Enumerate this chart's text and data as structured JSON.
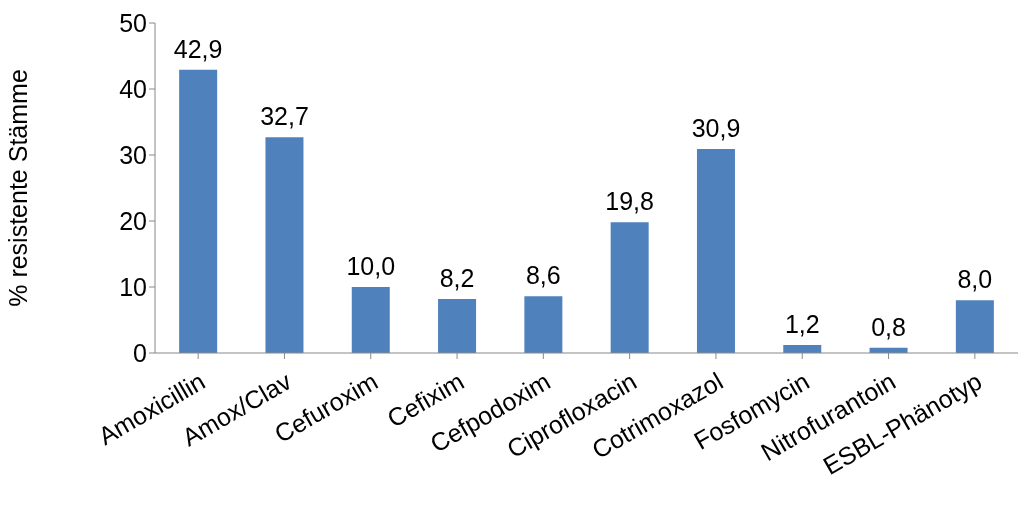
{
  "chart_data": {
    "type": "bar",
    "ylabel": "% resistente Stämme",
    "categories": [
      "Amoxicillin",
      "Amox/Clav",
      "Cefuroxim",
      "Cefixim",
      "Cefpodoxim",
      "Ciprofloxacin",
      "Cotrimoxazol",
      "Fosfomycin",
      "Nitrofurantoin",
      "ESBL-Phänotyp"
    ],
    "values": [
      42.9,
      32.7,
      10.0,
      8.2,
      8.6,
      19.8,
      30.9,
      1.2,
      0.8,
      8.0
    ],
    "value_labels": [
      "42,9",
      "32,7",
      "10,0",
      "8,2",
      "8,6",
      "19,8",
      "30,9",
      "1,2",
      "0,8",
      "8,0"
    ],
    "color": "#4f81bd",
    "ylim": [
      0,
      50
    ],
    "yticks": [
      0,
      10,
      20,
      30,
      40,
      50
    ]
  }
}
